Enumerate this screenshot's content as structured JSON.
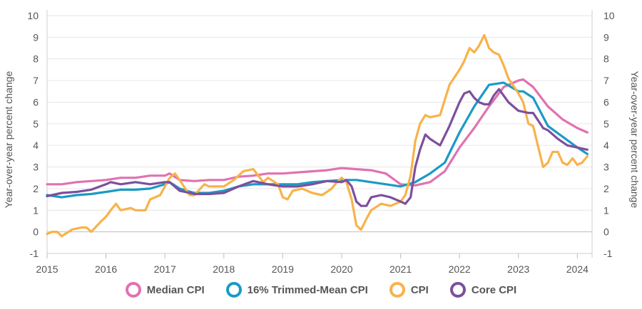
{
  "chart_data": {
    "type": "line",
    "ylabel_left": "Year-over-year percent change",
    "ylabel_right": "Year-over-year percent change",
    "ylim": [
      -1,
      10
    ],
    "xlim": [
      2015,
      2024.25
    ],
    "yticks": [
      "-1",
      "0",
      "1",
      "2",
      "3",
      "4",
      "5",
      "6",
      "7",
      "8",
      "9",
      "10"
    ],
    "xticks": [
      "2015",
      "2016",
      "2017",
      "2018",
      "2019",
      "2020",
      "2021",
      "2022",
      "2023",
      "2024"
    ],
    "grid": "horizontal",
    "legend_position": "bottom-center",
    "series": [
      {
        "name": "Median CPI",
        "color": "#e072b1",
        "x": [
          2015.0,
          2015.25,
          2015.5,
          2015.75,
          2016.0,
          2016.25,
          2016.5,
          2016.75,
          2017.0,
          2017.08,
          2017.25,
          2017.5,
          2017.75,
          2018.0,
          2018.25,
          2018.5,
          2018.75,
          2019.0,
          2019.25,
          2019.5,
          2019.75,
          2020.0,
          2020.25,
          2020.5,
          2020.75,
          2021.0,
          2021.25,
          2021.5,
          2021.75,
          2022.0,
          2022.25,
          2022.5,
          2022.75,
          2023.0,
          2023.08,
          2023.25,
          2023.5,
          2023.75,
          2024.0,
          2024.17
        ],
        "values": [
          2.2,
          2.2,
          2.3,
          2.35,
          2.4,
          2.5,
          2.5,
          2.6,
          2.6,
          2.7,
          2.4,
          2.35,
          2.4,
          2.4,
          2.55,
          2.6,
          2.7,
          2.7,
          2.75,
          2.8,
          2.85,
          2.95,
          2.9,
          2.85,
          2.7,
          2.2,
          2.15,
          2.3,
          2.8,
          3.9,
          4.8,
          5.8,
          6.7,
          7.0,
          7.05,
          6.7,
          5.8,
          5.2,
          4.8,
          4.6
        ]
      },
      {
        "name": "16% Trimmed-Mean CPI",
        "color": "#1a9ac6",
        "x": [
          2015.0,
          2015.25,
          2015.5,
          2015.75,
          2016.0,
          2016.25,
          2016.5,
          2016.75,
          2017.0,
          2017.08,
          2017.25,
          2017.5,
          2017.75,
          2018.0,
          2018.25,
          2018.5,
          2018.75,
          2019.0,
          2019.25,
          2019.5,
          2019.75,
          2020.0,
          2020.25,
          2020.5,
          2020.75,
          2021.0,
          2021.25,
          2021.5,
          2021.75,
          2022.0,
          2022.25,
          2022.5,
          2022.75,
          2023.0,
          2023.08,
          2023.25,
          2023.5,
          2023.75,
          2024.0,
          2024.17
        ],
        "values": [
          1.7,
          1.6,
          1.7,
          1.75,
          1.85,
          1.95,
          1.95,
          2.0,
          2.2,
          2.3,
          2.0,
          1.8,
          1.8,
          1.9,
          2.1,
          2.2,
          2.2,
          2.2,
          2.2,
          2.3,
          2.35,
          2.4,
          2.4,
          2.3,
          2.2,
          2.1,
          2.3,
          2.7,
          3.2,
          4.6,
          5.8,
          6.8,
          6.9,
          6.5,
          6.5,
          6.2,
          4.9,
          4.4,
          3.9,
          3.6
        ]
      },
      {
        "name": "CPI",
        "color": "#f8b24a",
        "x": [
          2015.0,
          2015.08,
          2015.17,
          2015.25,
          2015.42,
          2015.58,
          2015.67,
          2015.75,
          2015.92,
          2016.0,
          2016.08,
          2016.17,
          2016.25,
          2016.42,
          2016.5,
          2016.67,
          2016.75,
          2016.92,
          2017.0,
          2017.08,
          2017.17,
          2017.25,
          2017.42,
          2017.5,
          2017.67,
          2017.75,
          2017.92,
          2018.0,
          2018.17,
          2018.33,
          2018.5,
          2018.67,
          2018.75,
          2018.92,
          2019.0,
          2019.08,
          2019.17,
          2019.33,
          2019.5,
          2019.67,
          2019.83,
          2019.92,
          2020.0,
          2020.08,
          2020.17,
          2020.25,
          2020.33,
          2020.42,
          2020.5,
          2020.67,
          2020.83,
          2021.0,
          2021.08,
          2021.17,
          2021.25,
          2021.33,
          2021.42,
          2021.5,
          2021.67,
          2021.83,
          2022.0,
          2022.08,
          2022.17,
          2022.25,
          2022.33,
          2022.42,
          2022.5,
          2022.58,
          2022.67,
          2022.75,
          2022.83,
          2023.0,
          2023.08,
          2023.17,
          2023.25,
          2023.33,
          2023.42,
          2023.5,
          2023.58,
          2023.67,
          2023.75,
          2023.83,
          2023.92,
          2024.0,
          2024.08,
          2024.17
        ],
        "values": [
          -0.1,
          0.0,
          0.0,
          -0.2,
          0.1,
          0.2,
          0.2,
          0.0,
          0.5,
          0.7,
          1.0,
          1.3,
          1.0,
          1.1,
          1.0,
          1.0,
          1.5,
          1.7,
          2.1,
          2.5,
          2.7,
          2.4,
          1.7,
          1.7,
          2.2,
          2.1,
          2.1,
          2.1,
          2.4,
          2.8,
          2.9,
          2.3,
          2.5,
          2.2,
          1.6,
          1.5,
          1.9,
          2.0,
          1.8,
          1.7,
          2.0,
          2.3,
          2.5,
          2.3,
          1.5,
          0.3,
          0.1,
          0.6,
          1.0,
          1.3,
          1.2,
          1.4,
          1.7,
          2.6,
          4.2,
          5.0,
          5.4,
          5.3,
          5.4,
          6.8,
          7.5,
          7.9,
          8.5,
          8.3,
          8.6,
          9.1,
          8.5,
          8.3,
          8.2,
          7.7,
          7.1,
          6.4,
          6.0,
          5.0,
          4.9,
          4.0,
          3.0,
          3.2,
          3.7,
          3.7,
          3.2,
          3.1,
          3.4,
          3.1,
          3.2,
          3.5
        ]
      },
      {
        "name": "Core CPI",
        "color": "#7d4f9d",
        "x": [
          2015.0,
          2015.25,
          2015.5,
          2015.75,
          2016.0,
          2016.08,
          2016.25,
          2016.5,
          2016.75,
          2017.0,
          2017.08,
          2017.25,
          2017.5,
          2017.75,
          2018.0,
          2018.25,
          2018.5,
          2018.75,
          2019.0,
          2019.25,
          2019.5,
          2019.75,
          2020.0,
          2020.08,
          2020.17,
          2020.25,
          2020.33,
          2020.42,
          2020.5,
          2020.67,
          2020.83,
          2021.0,
          2021.08,
          2021.17,
          2021.25,
          2021.33,
          2021.42,
          2021.5,
          2021.67,
          2021.83,
          2022.0,
          2022.08,
          2022.17,
          2022.25,
          2022.33,
          2022.42,
          2022.5,
          2022.58,
          2022.67,
          2022.75,
          2022.83,
          2023.0,
          2023.17,
          2023.25,
          2023.42,
          2023.5,
          2023.67,
          2023.83,
          2024.0,
          2024.17
        ],
        "values": [
          1.65,
          1.8,
          1.85,
          1.95,
          2.2,
          2.3,
          2.2,
          2.3,
          2.2,
          2.3,
          2.3,
          1.9,
          1.75,
          1.75,
          1.8,
          2.1,
          2.35,
          2.2,
          2.1,
          2.1,
          2.2,
          2.35,
          2.3,
          2.4,
          2.1,
          1.4,
          1.2,
          1.2,
          1.6,
          1.7,
          1.6,
          1.4,
          1.3,
          1.6,
          3.0,
          3.8,
          4.5,
          4.3,
          4.0,
          4.9,
          6.0,
          6.4,
          6.5,
          6.2,
          6.0,
          5.9,
          5.9,
          6.3,
          6.6,
          6.3,
          6.0,
          5.6,
          5.5,
          5.5,
          4.8,
          4.7,
          4.3,
          4.0,
          3.9,
          3.8
        ]
      }
    ]
  }
}
